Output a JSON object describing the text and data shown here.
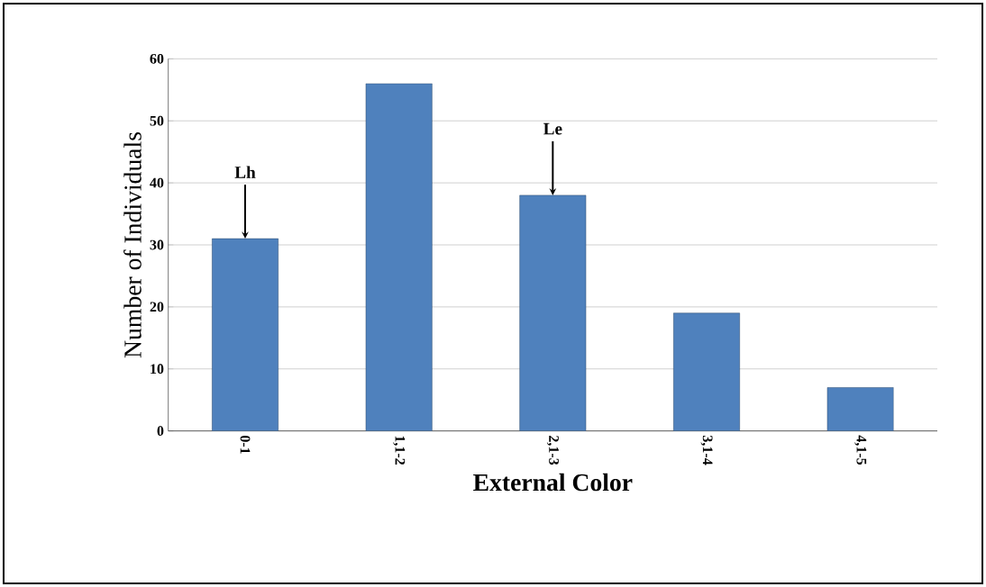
{
  "chart_data": {
    "type": "bar",
    "xlabel": "External Color",
    "ylabel": "Number of Individuals",
    "categories": [
      "0-1",
      "1,1-2",
      "2,1-3",
      "3,1-4",
      "4,1-5"
    ],
    "values": [
      31,
      56,
      38,
      19,
      7
    ],
    "color": "#4f81bd",
    "ylim": [
      0,
      60
    ],
    "yticks": [
      0,
      10,
      20,
      30,
      40,
      50,
      60
    ],
    "grid": "y",
    "annotations": [
      {
        "text": "Lh",
        "x": "0-1",
        "y": 31
      },
      {
        "text": "Le",
        "x": "2,1-3",
        "y": 38
      }
    ]
  }
}
